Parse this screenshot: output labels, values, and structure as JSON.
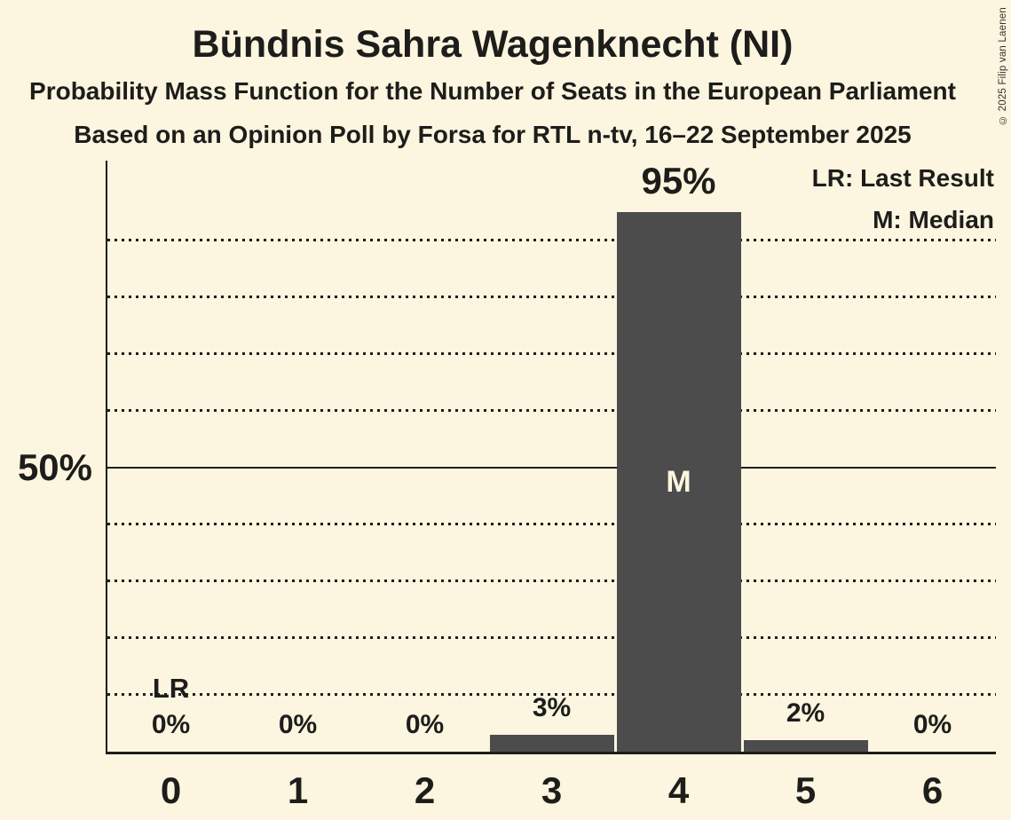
{
  "header": {
    "title": "Bündnis Sahra Wagenknecht (NI)",
    "subtitle": "Probability Mass Function for the Number of Seats in the European Parliament",
    "source_line": "Based on an Opinion Poll by Forsa for RTL n-tv, 16–22 September 2025"
  },
  "copyright": "© 2025 Filip van Laenen",
  "legend": {
    "last_result": "LR: Last Result",
    "median": "M: Median"
  },
  "colors": {
    "background": "#FCF5DF",
    "bar": "#4D4C4C",
    "text": "#1D1D1B"
  },
  "chart_data": {
    "type": "bar",
    "title": "Bündnis Sahra Wagenknecht (NI)",
    "categories": [
      "0",
      "1",
      "2",
      "3",
      "4",
      "5",
      "6"
    ],
    "values": [
      0,
      0,
      0,
      3,
      95,
      2,
      0
    ],
    "bar_labels": [
      "0%",
      "0%",
      "0%",
      "3%",
      "95%",
      "2%",
      "0%"
    ],
    "ylim": [
      0,
      104
    ],
    "y_axis_tick_label": "50%",
    "y_axis_tick_value": 50,
    "dotted_gridlines_pct": [
      10,
      20,
      30,
      40,
      60,
      70,
      80,
      90
    ],
    "solid_gridline_pct": 50,
    "grid": true,
    "legend_position": "top-right",
    "annotations": [
      {
        "text": "LR",
        "meaning": "Last Result",
        "seat_index": 0,
        "placement": "above-value-label"
      },
      {
        "text": "M",
        "meaning": "Median",
        "seat_index": 4,
        "placement": "centered-in-bar"
      }
    ]
  }
}
